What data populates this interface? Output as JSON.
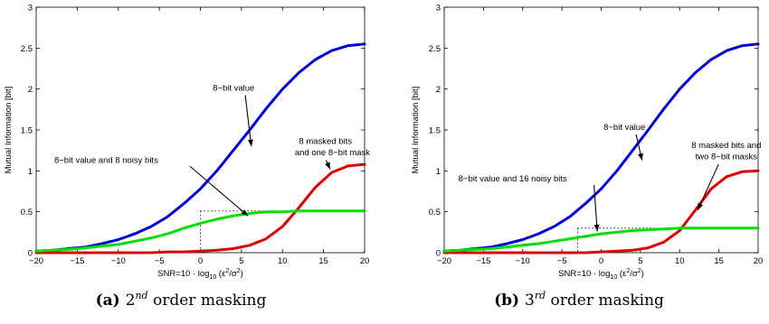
{
  "chart_data": [
    {
      "type": "line",
      "caption": {
        "label": "(a)",
        "base": "2",
        "sup": "nd",
        "rest": " order masking"
      },
      "ylabel": "Mutual Information [bit]",
      "xlabel": {
        "pre": "SNR=10 · log",
        "sub": "10",
        "mid": " (ε",
        "sup1": "2",
        "slash": "/σ",
        "sup2": "2",
        "post": ")"
      },
      "xlim": [
        -20,
        20
      ],
      "ylim": [
        0,
        3
      ],
      "x_ticks": [
        "−20",
        "−15",
        "−10",
        "−5",
        "0",
        "5",
        "10",
        "15",
        "20"
      ],
      "y_ticks": [
        "0",
        "0.5",
        "1",
        "1.5",
        "2",
        "2.5",
        "3"
      ],
      "x_tick_values": [
        -20,
        -15,
        -10,
        -5,
        0,
        5,
        10,
        15,
        20
      ],
      "y_tick_values": [
        0,
        0.5,
        1,
        1.5,
        2,
        2.5,
        3
      ],
      "x": [
        -20,
        -18,
        -16,
        -14,
        -12,
        -10,
        -8,
        -6,
        -4,
        -2,
        0,
        2,
        4,
        6,
        8,
        10,
        12,
        14,
        16,
        18,
        20
      ],
      "series": [
        {
          "color": "#0000dd",
          "values": [
            0.02,
            0.03,
            0.05,
            0.07,
            0.11,
            0.16,
            0.23,
            0.32,
            0.44,
            0.6,
            0.78,
            1.0,
            1.25,
            1.5,
            1.76,
            2.0,
            2.2,
            2.36,
            2.47,
            2.53,
            2.55
          ]
        },
        {
          "color": "#dd0000",
          "values": [
            0.0,
            0.0,
            0.0,
            0.0,
            0.0,
            0.0,
            0.0,
            0.0,
            0.01,
            0.01,
            0.02,
            0.03,
            0.05,
            0.09,
            0.17,
            0.32,
            0.55,
            0.8,
            0.98,
            1.06,
            1.08
          ]
        },
        {
          "color": "#00e000",
          "values": [
            0.02,
            0.03,
            0.04,
            0.06,
            0.08,
            0.1,
            0.14,
            0.18,
            0.23,
            0.3,
            0.36,
            0.41,
            0.45,
            0.48,
            0.5,
            0.5,
            0.51,
            0.51,
            0.51,
            0.51,
            0.51
          ]
        }
      ],
      "reference_line": {
        "y": 0.51,
        "x_from": 0,
        "x_to": 20
      },
      "annotations": [
        {
          "text": "8−bit value",
          "at": [
            1.5,
            1.98
          ],
          "tip": [
            6.2,
            1.3
          ]
        },
        {
          "text": "8 masked bits",
          "at": [
            12.0,
            1.33
          ],
          "tip": [
            15.8,
            1.02
          ]
        },
        {
          "text": "and one 8−bit mask",
          "at": [
            11.5,
            1.19
          ],
          "tip": null
        },
        {
          "text": "8−bit value and 8 noisy bits",
          "at": [
            -17.8,
            1.1
          ],
          "tip": [
            5.8,
            0.45
          ]
        }
      ]
    },
    {
      "type": "line",
      "caption": {
        "label": "(b)",
        "base": "3",
        "sup": "rd",
        "rest": " order masking"
      },
      "ylabel": "Mutual Information [bit]",
      "xlabel": {
        "pre": "SNR=10 · log",
        "sub": "10",
        "mid": " (ε",
        "sup1": "2",
        "slash": "/σ",
        "sup2": "2",
        "post": ")"
      },
      "xlim": [
        -20,
        20
      ],
      "ylim": [
        0,
        3
      ],
      "x_ticks": [
        "−20",
        "−15",
        "−10",
        "−5",
        "0",
        "5",
        "10",
        "15",
        "20"
      ],
      "y_ticks": [
        "0",
        "0.5",
        "1",
        "1.5",
        "2",
        "2.5",
        "3"
      ],
      "x_tick_values": [
        -20,
        -15,
        -10,
        -5,
        0,
        5,
        10,
        15,
        20
      ],
      "y_tick_values": [
        0,
        0.5,
        1,
        1.5,
        2,
        2.5,
        3
      ],
      "x": [
        -20,
        -18,
        -16,
        -14,
        -12,
        -10,
        -8,
        -6,
        -4,
        -2,
        0,
        2,
        4,
        6,
        8,
        10,
        12,
        14,
        16,
        18,
        20
      ],
      "series": [
        {
          "color": "#0000dd",
          "values": [
            0.02,
            0.03,
            0.05,
            0.07,
            0.11,
            0.16,
            0.23,
            0.32,
            0.44,
            0.6,
            0.78,
            1.0,
            1.25,
            1.5,
            1.76,
            2.0,
            2.2,
            2.36,
            2.47,
            2.53,
            2.55
          ]
        },
        {
          "color": "#dd0000",
          "values": [
            0.0,
            0.0,
            0.0,
            0.0,
            0.0,
            0.0,
            0.0,
            0.0,
            0.0,
            0.0,
            0.01,
            0.02,
            0.03,
            0.06,
            0.13,
            0.27,
            0.52,
            0.78,
            0.93,
            0.99,
            1.0
          ]
        },
        {
          "color": "#00e000",
          "values": [
            0.02,
            0.03,
            0.04,
            0.05,
            0.07,
            0.09,
            0.11,
            0.14,
            0.17,
            0.2,
            0.23,
            0.25,
            0.27,
            0.28,
            0.29,
            0.3,
            0.3,
            0.3,
            0.3,
            0.3,
            0.3
          ]
        }
      ],
      "reference_line": {
        "y": 0.3,
        "x_from": -3,
        "x_to": 20
      },
      "annotations": [
        {
          "text": "8−bit value",
          "at": [
            0.3,
            1.5
          ],
          "tip": [
            5.2,
            1.13
          ]
        },
        {
          "text": "8 masked bits and",
          "at": [
            11.5,
            1.28
          ],
          "tip": [
            12.3,
            0.52
          ]
        },
        {
          "text": "two 8−bit masks",
          "at": [
            12.0,
            1.14
          ],
          "tip": null
        },
        {
          "text": "8−bit value and 16 noisy bits",
          "at": [
            -18.2,
            0.87
          ],
          "tip": [
            -0.5,
            0.26
          ]
        }
      ]
    }
  ]
}
